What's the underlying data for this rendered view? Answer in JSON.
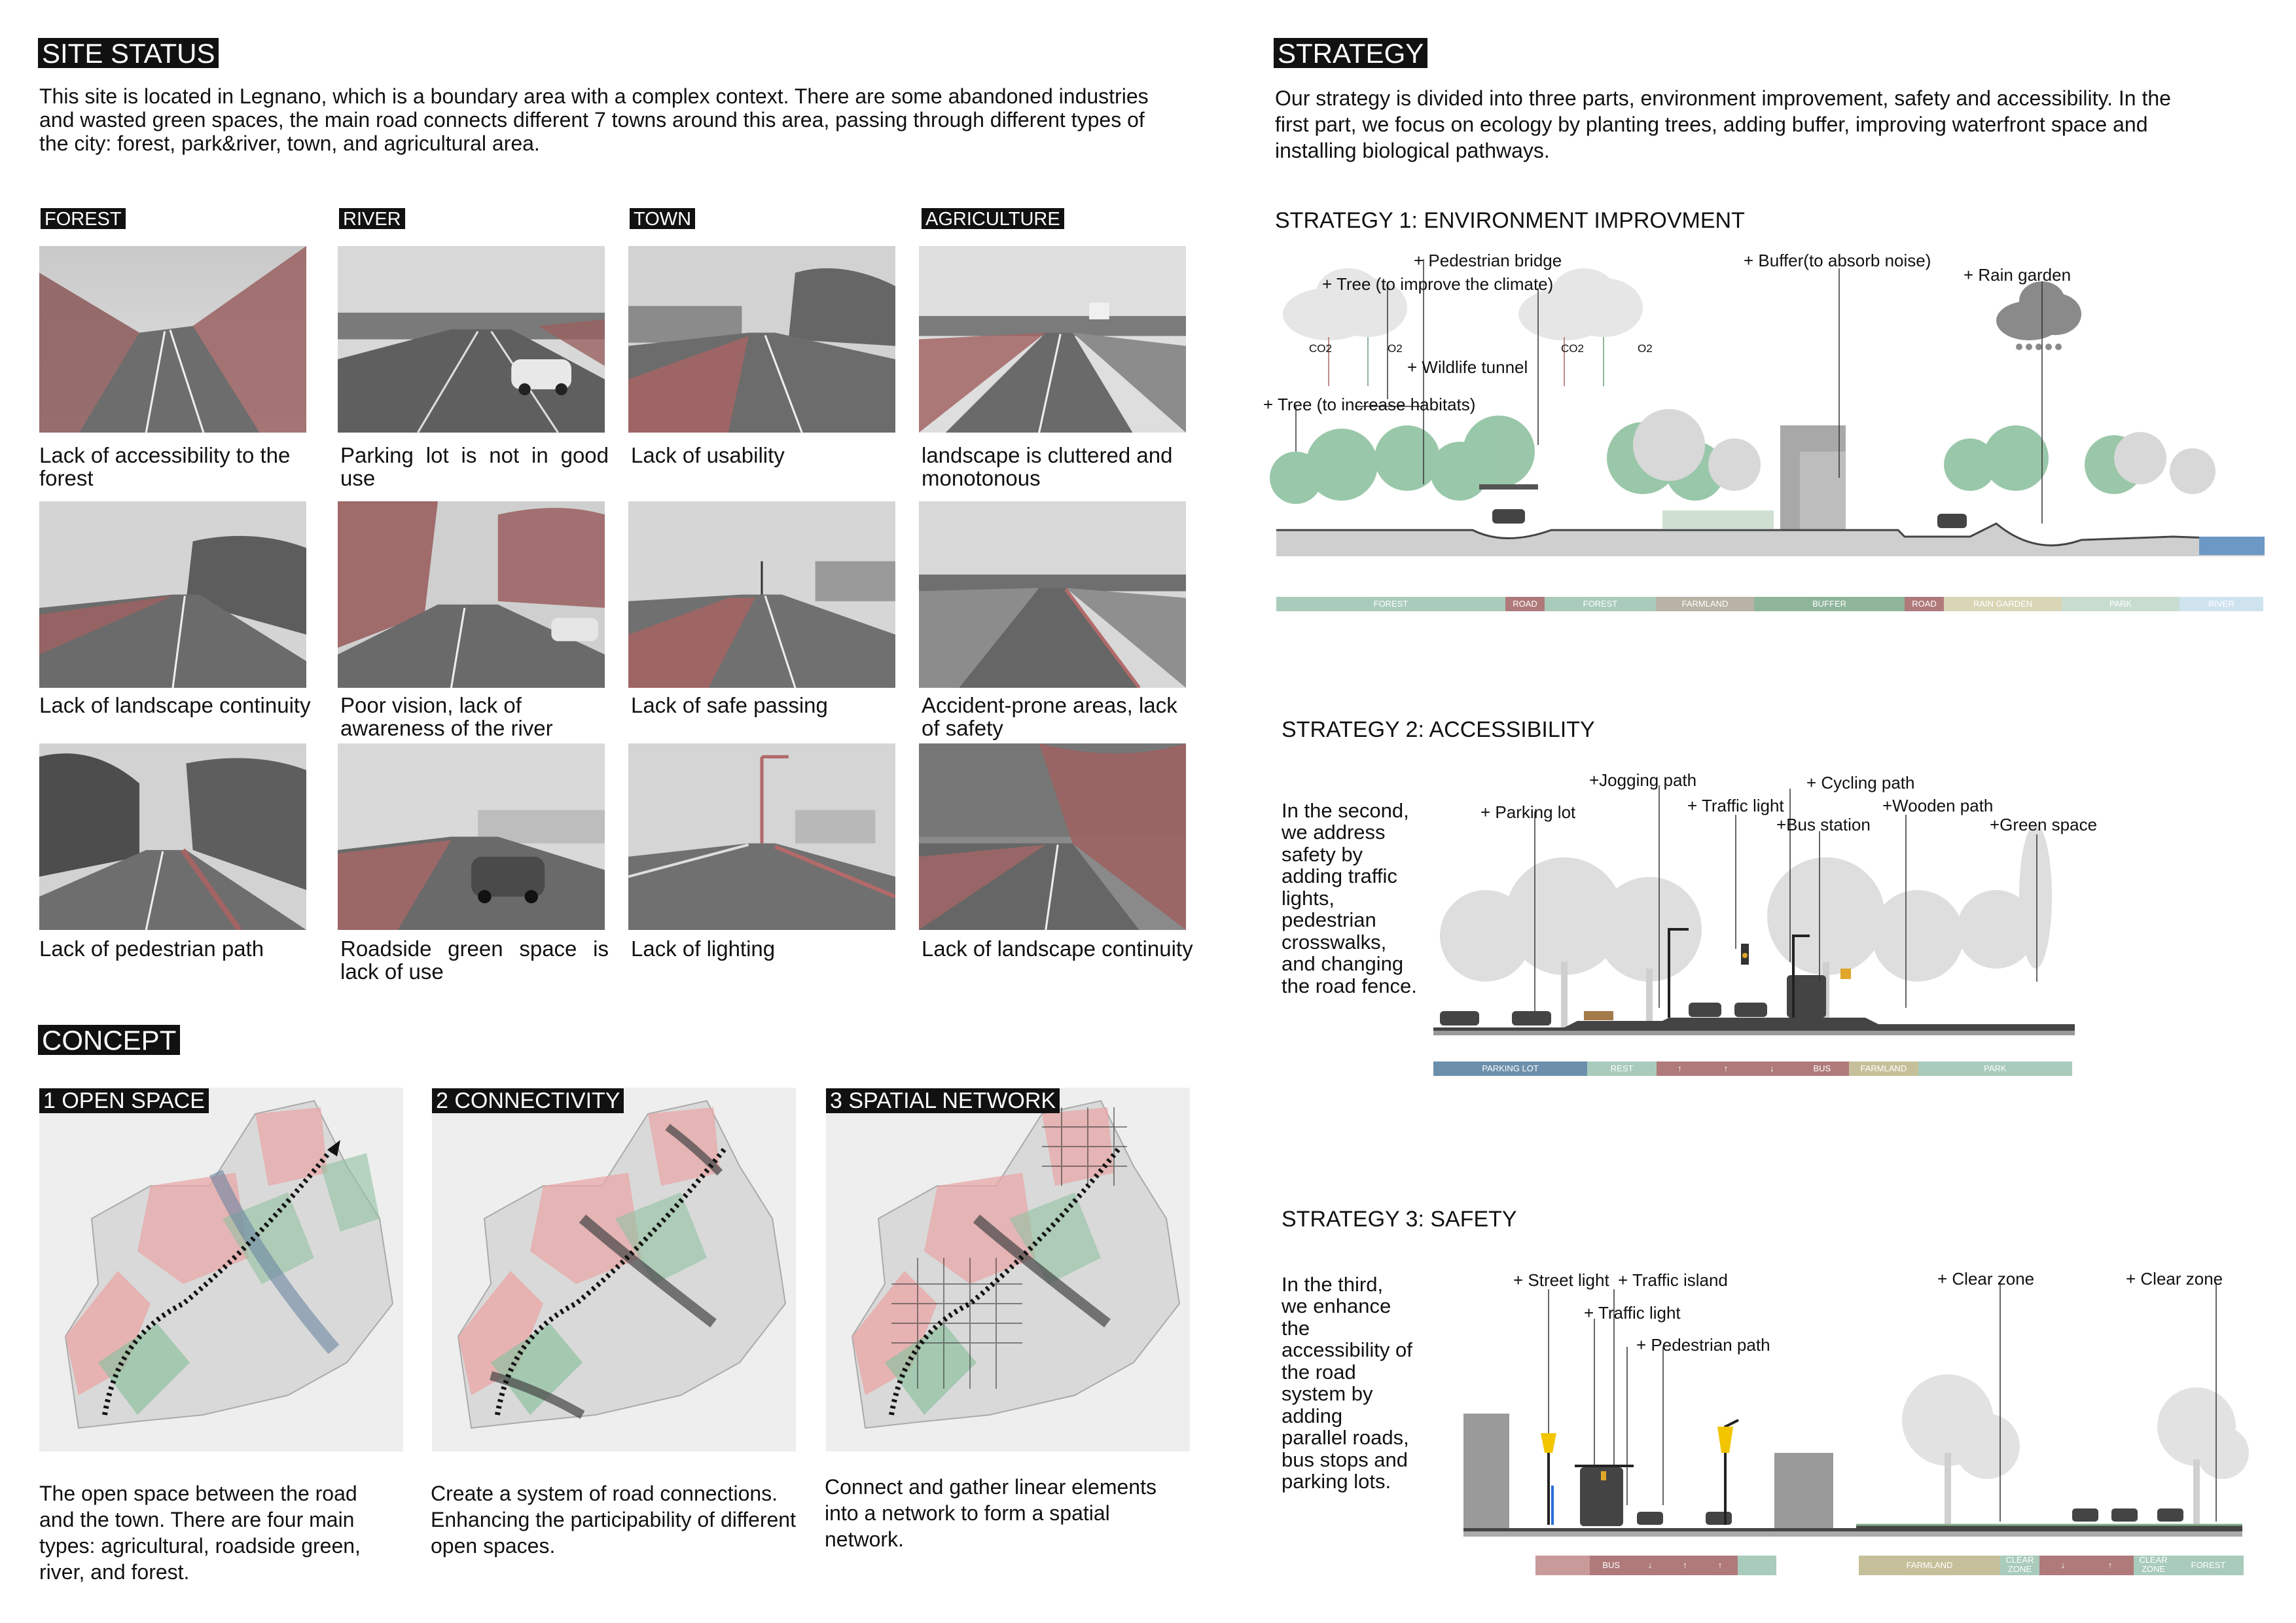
{
  "site_status": {
    "heading": "SITE STATUS",
    "intro": "This site is located in Legnano, which is a boundary area with a complex context. There are some abandoned industries and wasted green spaces, the main road connects different 7 towns around this area, passing through different types of the city: forest, park&river, town, and agricultural area.",
    "columns": [
      "FOREST",
      "RIVER",
      "TOWN",
      "AGRICULTURE"
    ],
    "captions": [
      [
        "Lack of accessibility to the forest",
        "Parking lot is not in good use",
        "Lack of usability",
        "landscape is cluttered and monotonous"
      ],
      [
        "Lack of landscape continuity",
        "Poor vision, lack of awareness of the river",
        "Lack of safe passing",
        "Accident-prone areas, lack of safety"
      ],
      [
        "Lack of pedestrian path",
        "Roadside green space is lack of use",
        "Lack of lighting",
        "Lack of landscape continuity"
      ]
    ]
  },
  "concept": {
    "heading": "CONCEPT",
    "items": [
      {
        "title": "1 OPEN SPACE",
        "text": "The open space between the road and the town.  There are four main types: agricultural, roadside green, river, and forest."
      },
      {
        "title": "2 CONNECTIVITY",
        "text": "Create a system of road connections. Enhancing the participability of different open spaces."
      },
      {
        "title": "3 SPATIAL NETWORK",
        "text": "Connect and gather linear elements into a network to form a spatial network."
      }
    ]
  },
  "strategy": {
    "heading": "STRATEGY",
    "intro": "Our strategy is divided into three parts, environment improvement, safety and accessibility. In the first part, we focus on ecology by planting trees, adding buffer, improving waterfront space and installing biological pathways.",
    "s1": {
      "title": "STRATEGY 1: ENVIRONMENT IMPROVMENT",
      "labels": {
        "pedestrian_bridge": "+ Pedestrian bridge",
        "tree_climate": "+ Tree (to improve the climate)",
        "buffer": "+ Buffer(to absorb noise)",
        "rain_garden": "+ Rain garden",
        "wildlife_tunnel": "+ Wildlife tunnel",
        "tree_habitats": "+ Tree (to increase habitats)",
        "co2_a": "CO2",
        "o2_a": "O2",
        "co2_b": "CO2",
        "o2_b": "O2"
      },
      "band": [
        "FOREST",
        "ROAD",
        "FOREST",
        "FARMLAND",
        "BUFFER",
        "ROAD",
        "RAIN GARDEN",
        "PARK",
        "RIVER"
      ]
    },
    "s2": {
      "title": "STRATEGY 2: ACCESSIBILITY",
      "side": "In the second, we address safety by adding traffic lights, pedestrian crosswalks, and changing the road fence.",
      "labels": {
        "jogging": "+Jogging path",
        "cycling": "+ Cycling path",
        "parking": "+ Parking lot",
        "traffic_light": "+ Traffic light",
        "wooden": "+Wooden path",
        "bus_station": "+Bus station",
        "green_space": "+Green space"
      },
      "band": [
        "PARKING LOT",
        "REST",
        "↑",
        "↑",
        "↓",
        "BUS",
        "FARMLAND",
        "PARK"
      ]
    },
    "s3": {
      "title": "STRATEGY 3: SAFETY",
      "side": "In the third, we enhance the accessibility of the road system by adding parallel roads, bus stops and parking lots.",
      "labels": {
        "street_light": "+ Street light",
        "traffic_island": "+ Traffic island",
        "traffic_light": "+ Traffic light",
        "pedestrian_path": "+ Pedestrian path",
        "clear_zone_a": "+ Clear zone",
        "clear_zone_b": "+ Clear zone"
      },
      "band_left": [
        "BUS",
        "↓",
        "↑",
        "↑"
      ],
      "band_right": [
        "FARMLAND",
        "CLEAR ZONE",
        "↓",
        "↑",
        "CLEAR ZONE",
        "FOREST"
      ]
    }
  },
  "colors": {
    "accent_red": "#b36a6a",
    "accent_green": "#7fae8a",
    "band_teal": "#a9cbbb",
    "band_road": "#b07a7a",
    "band_blue": "#6c8fab"
  }
}
